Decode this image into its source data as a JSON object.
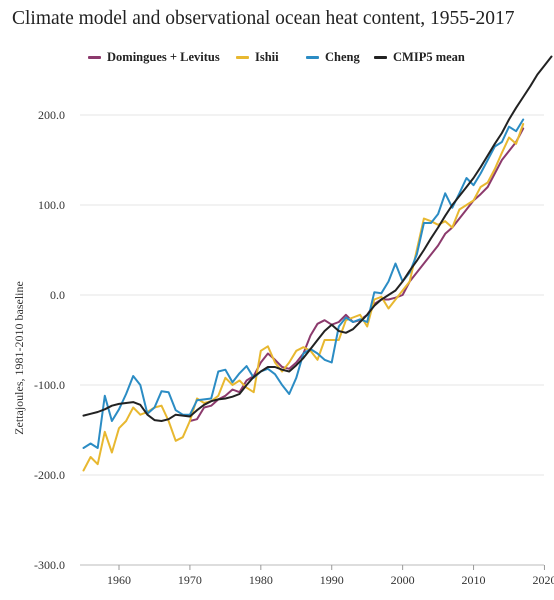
{
  "chart_data": {
    "type": "line",
    "title": "Climate model and observational ocean heat content, 1955-2017",
    "ylabel": "Zettajoules, 1981-2010 baseline",
    "xlabel": "",
    "xlim": [
      1954.5,
      2020.5
    ],
    "ylim": [
      -300,
      250
    ],
    "x_ticks": [
      1960,
      1970,
      1980,
      1990,
      2000,
      2010,
      2020
    ],
    "y_ticks": [
      -300,
      -200,
      -100,
      0,
      100,
      200
    ],
    "y_tick_labels": [
      "-300.0",
      "-200.0",
      "-100.0",
      "0.0",
      "100.0",
      "200.0"
    ],
    "grid": "horizontal",
    "legend_position": "top",
    "series": [
      {
        "name": "Domingues + Levitus",
        "color": "#8c3a6d",
        "x": [
          1970,
          1971,
          1972,
          1973,
          1974,
          1975,
          1976,
          1977,
          1978,
          1979,
          1980,
          1981,
          1982,
          1983,
          1984,
          1985,
          1986,
          1987,
          1988,
          1989,
          1990,
          1991,
          1992,
          1993,
          1994,
          1995,
          1996,
          1997,
          1998,
          1999,
          2000,
          2001,
          2002,
          2003,
          2004,
          2005,
          2006,
          2007,
          2008,
          2009,
          2010,
          2011,
          2012,
          2013,
          2014,
          2015,
          2016,
          2017
        ],
        "values": [
          -140,
          -138,
          -125,
          -123,
          -116,
          -112,
          -105,
          -108,
          -95,
          -90,
          -75,
          -65,
          -72,
          -80,
          -82,
          -75,
          -65,
          -45,
          -32,
          -28,
          -33,
          -30,
          -22,
          -30,
          -28,
          -22,
          -10,
          -5,
          -5,
          -3,
          0,
          15,
          25,
          35,
          45,
          55,
          68,
          75,
          85,
          95,
          105,
          112,
          120,
          135,
          150,
          160,
          170,
          185
        ]
      },
      {
        "name": "Ishii",
        "color": "#e8b830",
        "x": [
          1955,
          1956,
          1957,
          1958,
          1959,
          1960,
          1961,
          1962,
          1963,
          1964,
          1965,
          1966,
          1967,
          1968,
          1969,
          1970,
          1971,
          1972,
          1973,
          1974,
          1975,
          1976,
          1977,
          1978,
          1979,
          1980,
          1981,
          1982,
          1983,
          1984,
          1985,
          1986,
          1987,
          1988,
          1989,
          1990,
          1991,
          1992,
          1993,
          1994,
          1995,
          1996,
          1997,
          1998,
          1999,
          2000,
          2001,
          2002,
          2003,
          2004,
          2005,
          2006,
          2007,
          2008,
          2009,
          2010,
          2011,
          2012,
          2013,
          2014,
          2015,
          2016,
          2017
        ],
        "values": [
          -195,
          -180,
          -188,
          -152,
          -175,
          -148,
          -140,
          -125,
          -133,
          -130,
          -125,
          -123,
          -140,
          -162,
          -158,
          -140,
          -115,
          -120,
          -118,
          -112,
          -92,
          -100,
          -95,
          -103,
          -108,
          -62,
          -57,
          -75,
          -85,
          -75,
          -62,
          -58,
          -62,
          -72,
          -50,
          -50,
          -50,
          -28,
          -25,
          -22,
          -35,
          -5,
          -2,
          -15,
          -5,
          5,
          15,
          50,
          85,
          82,
          78,
          82,
          75,
          95,
          100,
          105,
          120,
          125,
          140,
          158,
          175,
          168,
          190
        ]
      },
      {
        "name": "Cheng",
        "color": "#2b8cc4",
        "x": [
          1955,
          1956,
          1957,
          1958,
          1959,
          1960,
          1961,
          1962,
          1963,
          1964,
          1965,
          1966,
          1967,
          1968,
          1969,
          1970,
          1971,
          1972,
          1973,
          1974,
          1975,
          1976,
          1977,
          1978,
          1979,
          1980,
          1981,
          1982,
          1983,
          1984,
          1985,
          1986,
          1987,
          1988,
          1989,
          1990,
          1991,
          1992,
          1993,
          1994,
          1995,
          1996,
          1997,
          1998,
          1999,
          2000,
          2001,
          2002,
          2003,
          2004,
          2005,
          2006,
          2007,
          2008,
          2009,
          2010,
          2011,
          2012,
          2013,
          2014,
          2015,
          2016,
          2017
        ],
        "values": [
          -170,
          -165,
          -170,
          -112,
          -140,
          -127,
          -110,
          -90,
          -100,
          -132,
          -125,
          -107,
          -108,
          -128,
          -133,
          -133,
          -117,
          -116,
          -115,
          -85,
          -83,
          -97,
          -87,
          -79,
          -92,
          -85,
          -82,
          -88,
          -100,
          -110,
          -92,
          -65,
          -60,
          -65,
          -72,
          -75,
          -35,
          -25,
          -30,
          -27,
          -30,
          3,
          2,
          15,
          35,
          15,
          25,
          45,
          80,
          80,
          90,
          113,
          97,
          113,
          130,
          122,
          135,
          150,
          165,
          170,
          187,
          182,
          195
        ]
      },
      {
        "name": "CMIP5 mean",
        "color": "#222222",
        "x": [
          1955,
          1956,
          1957,
          1958,
          1959,
          1960,
          1961,
          1962,
          1963,
          1964,
          1965,
          1966,
          1967,
          1968,
          1969,
          1970,
          1971,
          1972,
          1973,
          1974,
          1975,
          1976,
          1977,
          1978,
          1979,
          1980,
          1981,
          1982,
          1983,
          1984,
          1985,
          1986,
          1987,
          1988,
          1989,
          1990,
          1991,
          1992,
          1993,
          1994,
          1995,
          1996,
          1997,
          1998,
          1999,
          2000,
          2001,
          2002,
          2003,
          2004,
          2005,
          2006,
          2007,
          2008,
          2009,
          2010,
          2011,
          2012,
          2013,
          2014,
          2015,
          2016,
          2017,
          2018,
          2019,
          2020,
          2021
        ],
        "values": [
          -134,
          -132,
          -130,
          -127,
          -123,
          -121,
          -120,
          -119,
          -122,
          -133,
          -139,
          -140,
          -138,
          -133,
          -134,
          -135,
          -128,
          -122,
          -118,
          -116,
          -115,
          -113,
          -110,
          -100,
          -91,
          -85,
          -80,
          -80,
          -83,
          -85,
          -78,
          -70,
          -60,
          -50,
          -40,
          -33,
          -40,
          -42,
          -38,
          -30,
          -22,
          -12,
          -5,
          0,
          5,
          15,
          27,
          38,
          50,
          63,
          75,
          88,
          100,
          110,
          120,
          130,
          142,
          155,
          168,
          180,
          195,
          208,
          220,
          232,
          245,
          255,
          265
        ]
      }
    ]
  }
}
